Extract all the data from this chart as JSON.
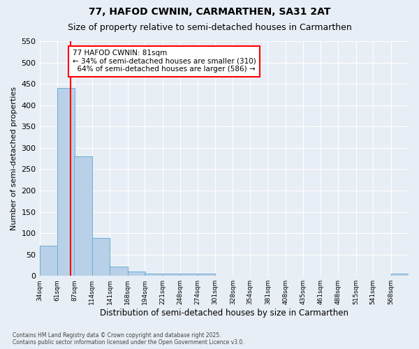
{
  "title": "77, HAFOD CWNIN, CARMARTHEN, SA31 2AT",
  "subtitle": "Size of property relative to semi-detached houses in Carmarthen",
  "xlabel": "Distribution of semi-detached houses by size in Carmarthen",
  "ylabel": "Number of semi-detached properties",
  "footer": "Contains HM Land Registry data © Crown copyright and database right 2025.\nContains public sector information licensed under the Open Government Licence v3.0.",
  "bin_labels": [
    "34sqm",
    "61sqm",
    "87sqm",
    "114sqm",
    "141sqm",
    "168sqm",
    "194sqm",
    "221sqm",
    "248sqm",
    "274sqm",
    "301sqm",
    "328sqm",
    "354sqm",
    "381sqm",
    "408sqm",
    "435sqm",
    "461sqm",
    "488sqm",
    "515sqm",
    "541sqm",
    "568sqm"
  ],
  "bin_left_edges": [
    34,
    61,
    87,
    114,
    141,
    168,
    194,
    221,
    248,
    274,
    301,
    328,
    354,
    381,
    408,
    435,
    461,
    488,
    515,
    541,
    568
  ],
  "bar_heights": [
    70,
    440,
    280,
    88,
    22,
    10,
    5,
    5,
    5,
    6,
    0,
    0,
    0,
    0,
    0,
    0,
    0,
    0,
    0,
    0,
    5
  ],
  "bar_color": "#b8d0e8",
  "bar_edge_color": "#6aaed6",
  "property_size": 81,
  "property_label": "77 HAFOD CWNIN: 81sqm",
  "pct_smaller": 34,
  "count_smaller": 310,
  "pct_larger": 64,
  "count_larger": 586,
  "vline_color": "red",
  "annotation_box_color": "red",
  "ylim": [
    0,
    550
  ],
  "yticks": [
    0,
    50,
    100,
    150,
    200,
    250,
    300,
    350,
    400,
    450,
    500,
    550
  ],
  "bg_color": "#e8eef5",
  "grid_color": "#ffffff",
  "title_fontsize": 10,
  "subtitle_fontsize": 9,
  "ann_fontsize": 7.5,
  "ylabel_fontsize": 8,
  "xlabel_fontsize": 8.5,
  "footer_fontsize": 5.5
}
